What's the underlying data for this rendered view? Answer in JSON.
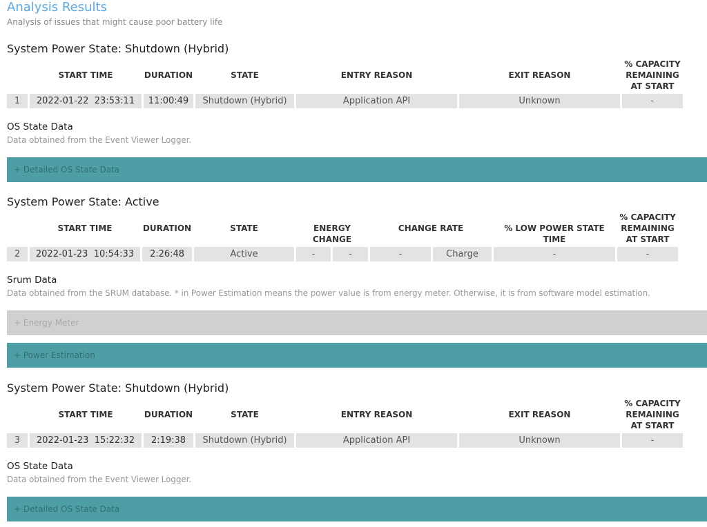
{
  "header": {
    "title": "Analysis Results",
    "subtitle": "Analysis of issues that might cause poor battery life"
  },
  "sections": [
    {
      "heading": "System Power State: Shutdown (Hybrid)",
      "columns": [
        "START TIME",
        "DURATION",
        "STATE",
        "ENTRY REASON",
        "EXIT REASON",
        "% CAPACITY REMAINING AT START"
      ],
      "row": [
        "1",
        "2022-01-22  23:53:11",
        "11:00:49",
        "Shutdown (Hybrid)",
        "Application API",
        "Unknown",
        "-"
      ],
      "subheading": "OS State Data",
      "description": "Data obtained from the Event Viewer Logger.",
      "bars": [
        {
          "label": "+  Detailed OS State Data",
          "style": "teal"
        }
      ]
    },
    {
      "heading": "System Power State: Active",
      "columns": [
        "START TIME",
        "DURATION",
        "STATE",
        "ENERGY CHANGE",
        "CHANGE RATE",
        "% LOW POWER STATE TIME",
        "% CAPACITY REMAINING AT START"
      ],
      "row": [
        "2",
        "2022-01-23  10:54:33",
        "2:26:48",
        "Active",
        "-",
        "-",
        "-",
        "Charge",
        "-",
        "-"
      ],
      "subheading": "Srum Data",
      "description": "Data obtained from the SRUM database. * in Power Estimation means the power value is from energy meter. Otherwise, it is from software model estimation.",
      "bars": [
        {
          "label": "+  Energy Meter",
          "style": "gray"
        },
        {
          "label": "+  Power Estimation",
          "style": "teal"
        }
      ]
    },
    {
      "heading": "System Power State: Shutdown (Hybrid)",
      "columns": [
        "START TIME",
        "DURATION",
        "STATE",
        "ENTRY REASON",
        "EXIT REASON",
        "% CAPACITY REMAINING AT START"
      ],
      "row": [
        "3",
        "2022-01-23  15:22:32",
        "2:19:38",
        "Shutdown (Hybrid)",
        "Application API",
        "Unknown",
        "-"
      ],
      "subheading": "OS State Data",
      "description": "Data obtained from the Event Viewer Logger.",
      "bars": [
        {
          "label": "+  Detailed OS State Data",
          "style": "teal"
        }
      ]
    }
  ],
  "colors": {
    "title": "#5ea9df",
    "teal": "#4e9fa5",
    "gray": "#d0d0d0",
    "cell": "#e3e3e3"
  }
}
